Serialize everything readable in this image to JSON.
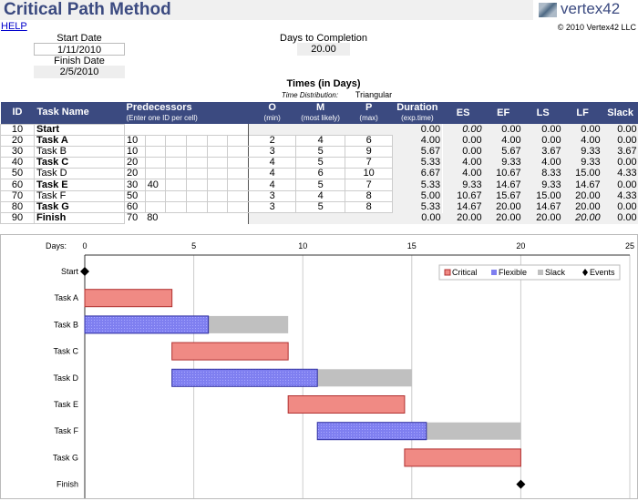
{
  "header": {
    "title": "Critical Path Method",
    "logo": "vertex42",
    "help": "HELP",
    "copyright": "© 2010 Vertex42 LLC"
  },
  "inputs": {
    "start_label": "Start Date",
    "start": "1/11/2010",
    "finish_label": "Finish Date",
    "finish": "2/5/2010",
    "days_label": "Days to Completion",
    "days": "20.00",
    "times_label": "Times (in Days)",
    "dist_label": "Time Distribution:",
    "dist": "Triangular"
  },
  "table": {
    "headers": {
      "id": "ID",
      "name": "Task Name",
      "pred": "Predecessors",
      "pred_sub": "(Enter one ID per cell)",
      "o": "O",
      "o_sub": "(min)",
      "m": "M",
      "m_sub": "(most likely)",
      "p": "P",
      "p_sub": "(max)",
      "dur": "Duration",
      "dur_sub": "(exp.time)",
      "es": "ES",
      "ef": "EF",
      "ls": "LS",
      "lf": "LF",
      "slack": "Slack"
    },
    "rows": [
      {
        "id": "10",
        "name": "Start",
        "bold": true,
        "pred": [
          "",
          "",
          "",
          "",
          "",
          ""
        ],
        "o": "",
        "m": "",
        "p": "",
        "dur": "0.00",
        "es": "0.00",
        "ef": "0.00",
        "ls": "0.00",
        "lf": "0.00",
        "slack": "0.00"
      },
      {
        "id": "20",
        "name": "Task A",
        "bold": true,
        "pred": [
          "10",
          "",
          "",
          "",
          "",
          ""
        ],
        "o": "2",
        "m": "4",
        "p": "6",
        "dur": "4.00",
        "es": "0.00",
        "ef": "4.00",
        "ls": "0.00",
        "lf": "4.00",
        "slack": "0.00"
      },
      {
        "id": "30",
        "name": "Task B",
        "bold": false,
        "pred": [
          "10",
          "",
          "",
          "",
          "",
          ""
        ],
        "o": "3",
        "m": "5",
        "p": "9",
        "dur": "5.67",
        "es": "0.00",
        "ef": "5.67",
        "ls": "3.67",
        "lf": "9.33",
        "slack": "3.67"
      },
      {
        "id": "40",
        "name": "Task C",
        "bold": true,
        "pred": [
          "20",
          "",
          "",
          "",
          "",
          ""
        ],
        "o": "4",
        "m": "5",
        "p": "7",
        "dur": "5.33",
        "es": "4.00",
        "ef": "9.33",
        "ls": "4.00",
        "lf": "9.33",
        "slack": "0.00"
      },
      {
        "id": "50",
        "name": "Task D",
        "bold": false,
        "pred": [
          "20",
          "",
          "",
          "",
          "",
          ""
        ],
        "o": "4",
        "m": "6",
        "p": "10",
        "dur": "6.67",
        "es": "4.00",
        "ef": "10.67",
        "ls": "8.33",
        "lf": "15.00",
        "slack": "4.33"
      },
      {
        "id": "60",
        "name": "Task E",
        "bold": true,
        "pred": [
          "30",
          "40",
          "",
          "",
          "",
          ""
        ],
        "o": "4",
        "m": "5",
        "p": "7",
        "dur": "5.33",
        "es": "9.33",
        "ef": "14.67",
        "ls": "9.33",
        "lf": "14.67",
        "slack": "0.00"
      },
      {
        "id": "70",
        "name": "Task F",
        "bold": false,
        "pred": [
          "50",
          "",
          "",
          "",
          "",
          ""
        ],
        "o": "3",
        "m": "4",
        "p": "8",
        "dur": "5.00",
        "es": "10.67",
        "ef": "15.67",
        "ls": "15.00",
        "lf": "20.00",
        "slack": "4.33"
      },
      {
        "id": "80",
        "name": "Task G",
        "bold": true,
        "pred": [
          "60",
          "",
          "",
          "",
          "",
          ""
        ],
        "o": "3",
        "m": "5",
        "p": "8",
        "dur": "5.33",
        "es": "14.67",
        "ef": "20.00",
        "ls": "14.67",
        "lf": "20.00",
        "slack": "0.00"
      },
      {
        "id": "90",
        "name": "Finish",
        "bold": true,
        "pred": [
          "70",
          "80",
          "",
          "",
          "",
          ""
        ],
        "o": "",
        "m": "",
        "p": "",
        "dur": "0.00",
        "es": "20.00",
        "ef": "20.00",
        "ls": "20.00",
        "lf": "20.00",
        "slack": "0.00"
      }
    ]
  },
  "chart_data": {
    "type": "gantt",
    "xlabel": "Days:",
    "xlim": [
      0,
      25
    ],
    "xticks": [
      0,
      5,
      10,
      15,
      20,
      25
    ],
    "grid": true,
    "legend_position": "top-right",
    "colors": {
      "critical": "#f08a84",
      "flexible": "#7f7ff0",
      "slack": "#c0c0c0",
      "events": "#000000"
    },
    "legend": [
      "Critical",
      "Flexible",
      "Slack",
      "Events"
    ],
    "tasks": [
      {
        "name": "Start",
        "type": "event",
        "start": 0
      },
      {
        "name": "Task A",
        "type": "critical",
        "start": 0,
        "end": 4
      },
      {
        "name": "Task B",
        "type": "flexible",
        "start": 0,
        "end": 5.67,
        "slack_end": 9.33
      },
      {
        "name": "Task C",
        "type": "critical",
        "start": 4,
        "end": 9.33
      },
      {
        "name": "Task D",
        "type": "flexible",
        "start": 4,
        "end": 10.67,
        "slack_end": 15
      },
      {
        "name": "Task E",
        "type": "critical",
        "start": 9.33,
        "end": 14.67
      },
      {
        "name": "Task F",
        "type": "flexible",
        "start": 10.67,
        "end": 15.67,
        "slack_end": 20
      },
      {
        "name": "Task G",
        "type": "critical",
        "start": 14.67,
        "end": 20
      },
      {
        "name": "Finish",
        "type": "event",
        "start": 20
      }
    ]
  }
}
